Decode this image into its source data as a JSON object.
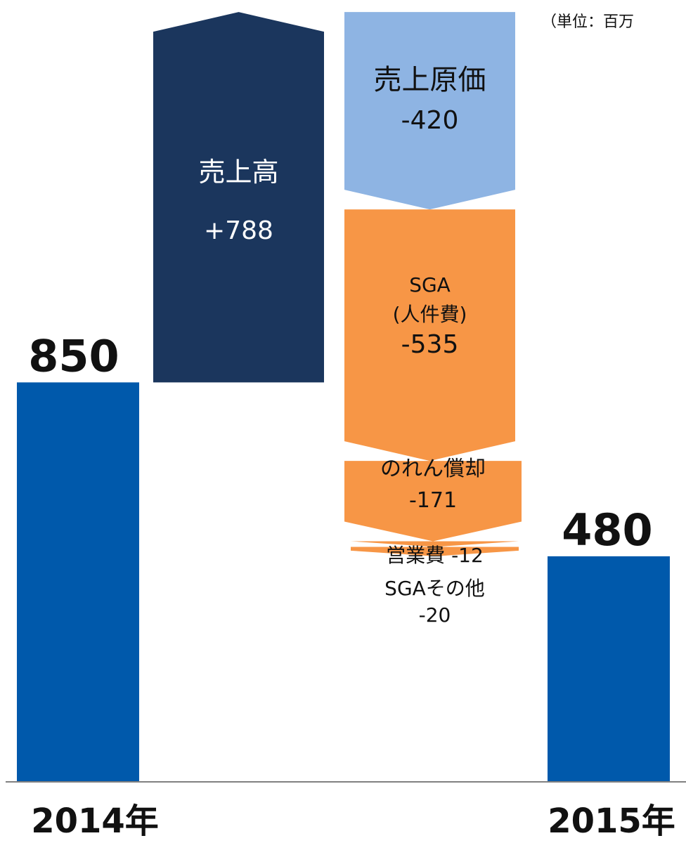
{
  "chart_data": {
    "type": "bar",
    "subtype": "waterfall",
    "unit_note": "（単位：百万",
    "bars": [
      {
        "kind": "total",
        "category": "2014年",
        "value": 850,
        "label": "850",
        "color": "#0059AB"
      },
      {
        "kind": "increase",
        "name": "売上高",
        "value": 788,
        "label": "+788",
        "color": "#1B365D",
        "shape": "arrow-up"
      },
      {
        "kind": "decrease",
        "name": "売上原価",
        "value": -420,
        "label": "-420",
        "color": "#8EB4E3",
        "shape": "arrow-down"
      },
      {
        "kind": "decrease",
        "name": "SGA\n(人件費)",
        "value": -535,
        "label": "-535",
        "color": "#F79646",
        "shape": "arrow-down"
      },
      {
        "kind": "decrease",
        "name": "のれん償却",
        "value": -171,
        "label": "-171",
        "color": "#F79646",
        "shape": "arrow-down"
      },
      {
        "kind": "decrease",
        "name": "営業費",
        "value": -12,
        "label": "-12",
        "color": "#F79646",
        "shape": "arrow-down"
      },
      {
        "kind": "decrease",
        "name": "SGAその他",
        "value": -20,
        "label": "-20",
        "color": "#F79646",
        "shape": "arrow-down"
      },
      {
        "kind": "total",
        "category": "2015年",
        "value": 480,
        "label": "480",
        "color": "#0059AB"
      }
    ],
    "axis_line_color": "#808080",
    "grid": false,
    "legend": "none"
  }
}
